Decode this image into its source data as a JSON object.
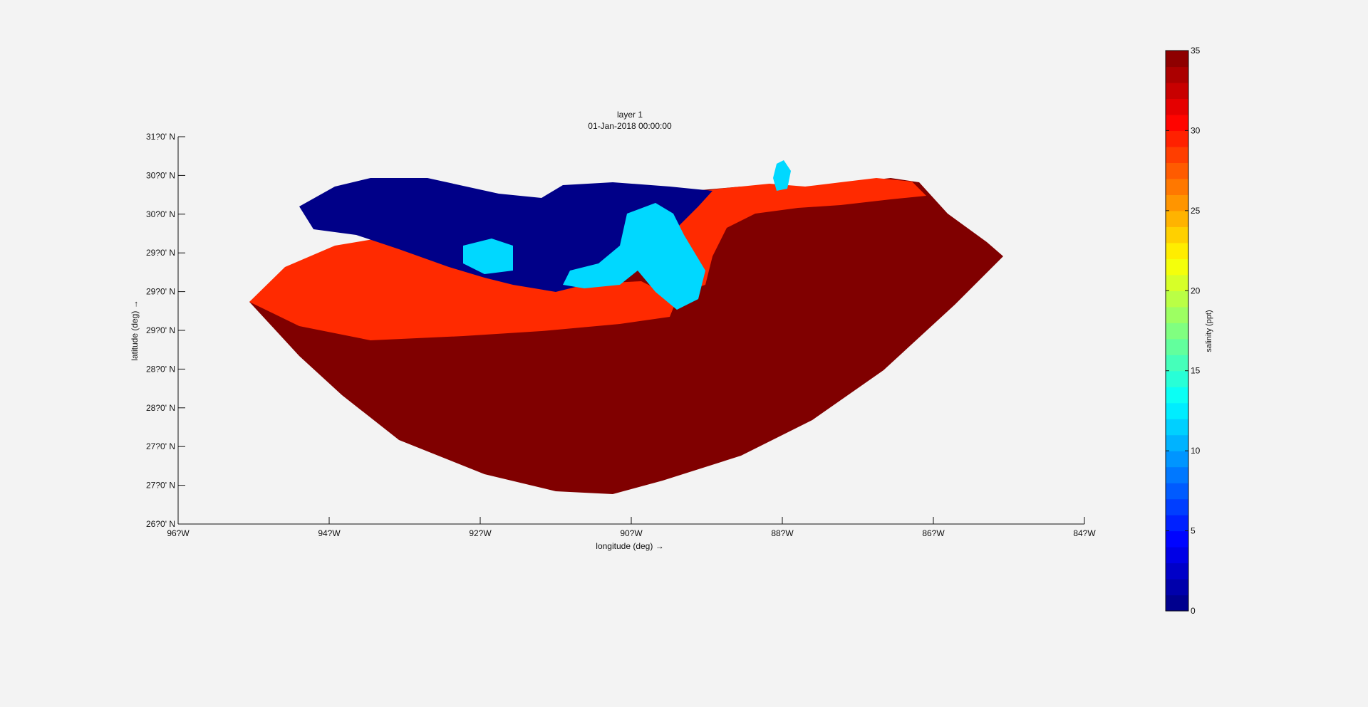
{
  "chart_data": {
    "type": "heatmap",
    "title_lines": [
      "layer 1",
      "01-Jan-2018 00:00:00"
    ],
    "xlabel": "longitude (deg) →",
    "ylabel": "latitude (deg) →",
    "xlim": [
      -96,
      -84
    ],
    "ylim": [
      26,
      31
    ],
    "x_ticks": [
      -96,
      -94,
      -92,
      -90,
      -88,
      -86,
      -84
    ],
    "x_tick_labels": [
      "96?W",
      "94?W",
      "92?W",
      "90?W",
      "88?W",
      "86?W",
      "84?W"
    ],
    "y_ticks": [
      26,
      26.5,
      27,
      27.5,
      28,
      28.5,
      29,
      29.5,
      30,
      30.5,
      31
    ],
    "y_tick_labels": [
      "26?0' N",
      "27?0' N",
      "27?0' N",
      "28?0' N",
      "28?0' N",
      "29?0' N",
      "29?0' N",
      "29?0' N",
      "30?0' N",
      "30?0' N",
      "31?0' N"
    ],
    "colorbar": {
      "label": "salinity (ppt)",
      "range": [
        0,
        35
      ],
      "levels": 35,
      "ticks": [
        0,
        5,
        10,
        15,
        20,
        25,
        30,
        35
      ],
      "tick_labels": [
        "0",
        "5",
        "10",
        "15",
        "20",
        "25",
        "30",
        "35"
      ],
      "colormap": "jet"
    },
    "regions": [
      {
        "name": "open-gulf",
        "salinity": 34.5,
        "color": "#800000"
      },
      {
        "name": "nearshore-band",
        "salinity": 31,
        "color": "#ff2a00"
      },
      {
        "name": "fresh-inland-marsh",
        "salinity": 0.5,
        "color": "#000088"
      },
      {
        "name": "mississippi-plume",
        "salinity": 14,
        "color": "#00d8ff"
      }
    ]
  }
}
